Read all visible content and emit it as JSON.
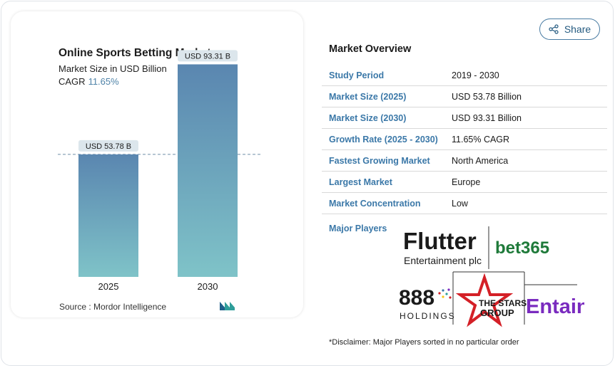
{
  "chart": {
    "title": "Online Sports Betting Market",
    "subtitle": "Market Size in USD Billion",
    "cagr_label": "CAGR",
    "cagr_value": "11.65%",
    "source": "Source :  Mordor Intelligence"
  },
  "chart_data": {
    "type": "bar",
    "categories": [
      "2025",
      "2030"
    ],
    "values": [
      53.78,
      93.31
    ],
    "data_labels": [
      "USD 53.78 B",
      "USD 93.31 B"
    ],
    "title": "Online Sports Betting Market",
    "subtitle": "Market Size in USD Billion",
    "xlabel": "",
    "ylabel": "",
    "ylim": [
      0,
      100
    ],
    "grid": false,
    "reference_line_at": 53.78,
    "colors": {
      "bar_top": "#5a86b0",
      "bar_bottom": "#7fc3c8",
      "label_bg": "#dce6ec",
      "reference_line": "#6f8fa8"
    }
  },
  "share": {
    "label": "Share"
  },
  "overview": {
    "title": "Market Overview",
    "rows": [
      {
        "key": "Study Period",
        "value": "2019 - 2030"
      },
      {
        "key": "Market Size (2025)",
        "value": "USD 53.78 Billion"
      },
      {
        "key": "Market Size (2030)",
        "value": "USD 93.31 Billion"
      },
      {
        "key": "Growth Rate (2025 - 2030)",
        "value": "11.65% CAGR"
      },
      {
        "key": "Fastest Growing Market",
        "value": "North America"
      },
      {
        "key": "Largest Market",
        "value": "Europe"
      },
      {
        "key": "Market Concentration",
        "value": "Low"
      }
    ]
  },
  "major_players": {
    "label": "Major Players",
    "players": [
      {
        "name": "Flutter",
        "line2": "Entertainment plc"
      },
      {
        "name": "bet365"
      },
      {
        "name": "888",
        "line2": "HOLDINGS"
      },
      {
        "name": "THE STARS",
        "line2": "GROUP"
      },
      {
        "name": "Entain"
      }
    ]
  },
  "disclaimer": "*Disclaimer: Major Players sorted in no particular order",
  "colors": {
    "accent": "#3b78a8",
    "share_border": "#4a7ca3",
    "bet365_green": "#1f7a3a",
    "bet365_yellow": "#f5c518",
    "stars_red": "#d42027",
    "entain_purple": "#7a2bbf"
  }
}
